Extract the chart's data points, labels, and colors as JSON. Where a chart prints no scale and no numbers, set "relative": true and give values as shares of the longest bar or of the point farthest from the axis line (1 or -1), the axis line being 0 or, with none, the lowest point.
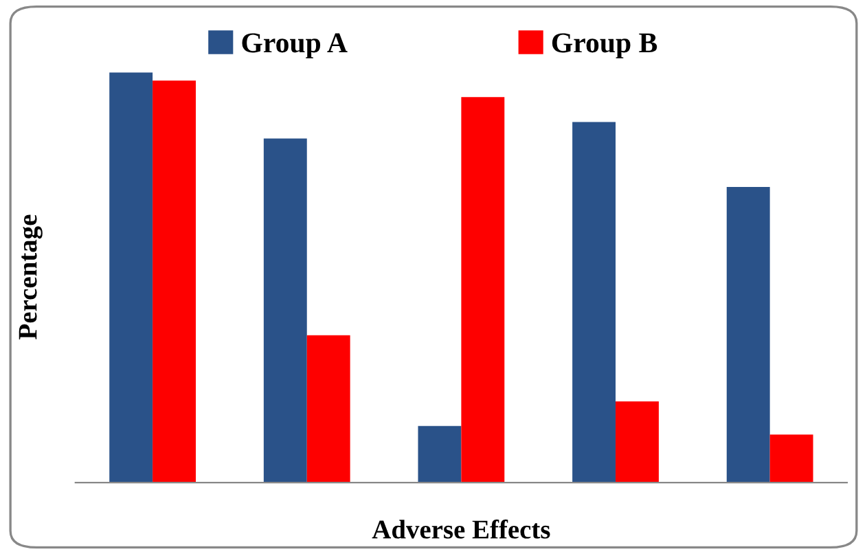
{
  "chart_data": {
    "type": "bar",
    "xlabel": "Adverse Effects",
    "ylabel": "Percentage",
    "relative": true,
    "legend": "top",
    "categories": [
      null,
      null,
      null,
      null,
      null
    ],
    "series": [
      {
        "name": "Group A",
        "color": "#2a5289",
        "values": [
          1,
          0.839,
          0.138,
          0.879,
          0.721
        ]
      },
      {
        "name": "Group B",
        "color": "#fe0000",
        "values": [
          0.98,
          0.359,
          0.94,
          0.198,
          0.117
        ]
      }
    ]
  }
}
